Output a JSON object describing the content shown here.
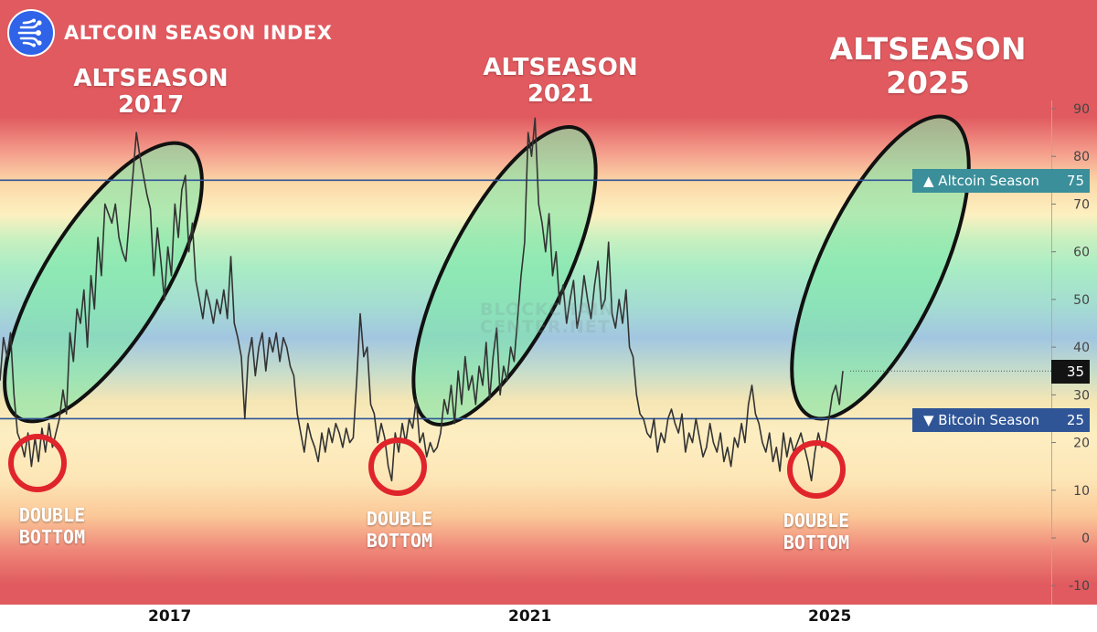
{
  "header": {
    "title": "ALTCOIN SEASON INDEX",
    "logo_icon": "network-logo-icon"
  },
  "annotations": {
    "altseason_2017": [
      "ALTSEASON",
      "2017"
    ],
    "altseason_2021": [
      "ALTSEASON",
      "2021"
    ],
    "altseason_2025": [
      "ALTSEASON",
      "2025"
    ],
    "double_bottom": [
      "DOUBLE",
      "BOTTOM"
    ]
  },
  "watermark": [
    "BLOCKCHAIN",
    "CENTER.NET"
  ],
  "tags": {
    "altcoin_season": "▲ Altcoin Season",
    "altcoin_value": "75",
    "bitcoin_season": "▼ Bitcoin Season",
    "bitcoin_value": "25",
    "current_value": "35"
  },
  "colors": {
    "altcoin_tag": "#3a8f9a",
    "bitcoin_tag": "#2f5596",
    "threshold_line": "#2f5596",
    "price_line": "#333333",
    "current_tag": "#131313",
    "ellipse_fill": "#7de6a8",
    "circle_stroke": "#e0242c"
  },
  "chart_data": {
    "type": "line",
    "title": "ALTCOIN SEASON INDEX",
    "xlabel": "",
    "ylabel": "",
    "x_tick_labels": [
      "2017",
      "2021",
      "2025"
    ],
    "y_ticks": [
      -10,
      0,
      10,
      20,
      30,
      40,
      50,
      60,
      70,
      80,
      90
    ],
    "ylim": [
      -12,
      92
    ],
    "reference_lines": [
      {
        "label": "Altcoin Season",
        "value": 75
      },
      {
        "label": "Bitcoin Season",
        "value": 25
      }
    ],
    "last_value": 35,
    "grid": false,
    "series": [
      {
        "values": [
          33,
          42,
          38,
          43,
          30,
          22,
          20,
          17,
          22,
          15,
          21,
          16,
          23,
          18,
          24,
          19,
          22,
          25,
          31,
          26,
          43,
          37,
          48,
          45,
          52,
          40,
          55,
          48,
          63,
          55,
          70,
          68,
          66,
          70,
          63,
          60,
          58,
          67,
          76,
          85,
          80,
          76,
          72,
          69,
          55,
          65,
          58,
          50,
          61,
          55,
          70,
          63,
          73,
          76,
          60,
          66,
          54,
          50,
          46,
          52,
          49,
          45,
          50,
          47,
          52,
          46,
          59,
          45,
          42,
          38,
          25,
          38,
          42,
          34,
          40,
          43,
          35,
          42,
          39,
          43,
          37,
          42,
          40,
          36,
          34,
          26,
          22,
          18,
          24,
          21,
          19,
          16,
          22,
          18,
          23,
          20,
          24,
          22,
          19,
          23,
          20,
          21,
          33,
          47,
          38,
          40,
          28,
          26,
          20,
          24,
          21,
          15,
          12,
          22,
          18,
          24,
          20,
          25,
          23,
          29,
          20,
          22,
          17,
          20,
          18,
          19,
          22,
          29,
          26,
          32,
          24,
          35,
          28,
          38,
          31,
          34,
          28,
          36,
          32,
          41,
          29,
          38,
          44,
          30,
          36,
          33,
          40,
          37,
          46,
          55,
          62,
          85,
          80,
          88,
          70,
          66,
          60,
          68,
          55,
          60,
          49,
          53,
          45,
          50,
          54,
          44,
          48,
          55,
          50,
          46,
          53,
          58,
          48,
          50,
          62,
          47,
          44,
          50,
          45,
          52,
          40,
          38,
          30,
          26,
          25,
          22,
          21,
          25,
          18,
          22,
          20,
          25,
          27,
          24,
          22,
          26,
          18,
          22,
          20,
          25,
          21,
          17,
          19,
          24,
          20,
          18,
          22,
          16,
          19,
          15,
          21,
          19,
          24,
          20,
          28,
          32,
          26,
          24,
          20,
          18,
          22,
          16,
          19,
          14,
          22,
          17,
          21,
          18,
          20,
          22,
          19,
          16,
          12,
          18,
          22,
          19,
          20,
          25,
          30,
          32,
          28,
          35
        ]
      }
    ]
  }
}
